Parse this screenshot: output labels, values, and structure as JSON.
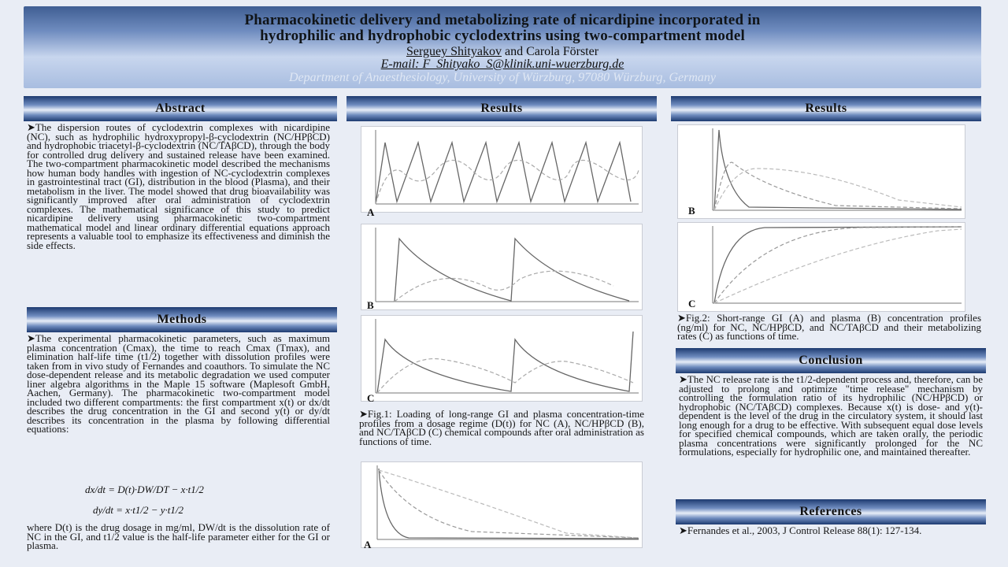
{
  "header": {
    "title_line1": "Pharmacokinetic delivery and metabolizing rate of nicardipine incorporated in",
    "title_line2": "hydrophilic and hydrophobic cyclodextrins using two-compartment model",
    "author1": "Serguey Shityakov",
    "author_rest": " and Carola Förster",
    "email": "E-mail: F_Shityako_S@klinik.uni-wuerzburg.de",
    "department": "Department of Anaesthesiology, University of Würzburg, 97080 Würzburg, Germany"
  },
  "sections": {
    "abstract": "Abstract",
    "methods": "Methods",
    "results_mid": "Results",
    "results_right": "Results",
    "conclusion": "Conclusion",
    "references": "References"
  },
  "abstract_text": "➤The dispersion routes of cyclodextrin complexes with nicardipine (NC), such as hydrophilic hydroxypropyl-β-cyclodextrin (NC/HPβCD) and hydrophobic triacetyl-β-cyclodextrin (NC/TAβCD), through the body for controlled drug delivery and sustained release have been examined. The two-compartment pharmacokinetic model described the mechanisms how human body handles with ingestion of NC-cyclodextrin complexes in gastrointestinal tract (GI), distribution in the blood (Plasma), and their metabolism in the liver. The model showed that drug bioavailability was significantly improved after oral administration of cyclodextrin complexes. The mathematical significance of this study to predict nicardipine delivery using pharmacokinetic two-compartment mathematical model and linear ordinary differential equations approach represents a valuable tool to emphasize its effectiveness and diminish the side effects.",
  "methods_text": "➤The experimental pharmacokinetic parameters, such as maximum plasma concentration (Cmax), the time to reach Cmax (Tmax), and elimination half-life time (t1/2) together with dissolution profiles were taken from in vivo study of Fernandes and coauthors. To simulate the NC dose-dependent release and its metabolic degradation we used computer liner algebra algorithms in the Maple 15 software (Maplesoft GmbH, Aachen, Germany). The pharmacokinetic two-compartment model included two different compartments: the first compartment x(t) or dx/dt describes the drug concentration in the GI and second y(t) or dy/dt describes its concentration in the plasma by following differential equations:",
  "equations": {
    "eq1": "dx/dt = D(t)·DW/DT − x·t1/2",
    "eq2": "dy/dt = x·t1/2 − y·t1/2"
  },
  "methods_text2": "where D(t) is the drug dosage in mg/ml, DW/dt is the dissolution rate of NC in the GI, and t1/2 value is the half-life parameter either for the GI or plasma.",
  "fig1_caption": "➤Fig.1: Loading of long-range GI and plasma concentration-time profiles from a dosage regime (D(t)) for NC (A), NC/HPβCD (B), and NC/TAβCD (C) chemical compounds after oral administration as functions of time.",
  "fig2_caption": "➤Fig.2: Short-range GI (A) and plasma (B) concentration profiles (ng/ml) for NC, NC/HPβCD, and NC/TAβCD and their metabolizing rates (C) as functions of time.",
  "conclusion_text": "➤The NC release rate is the t1/2-dependent process and, therefore, can be adjusted to prolong and optimize \"time release\" mechanism by controlling the formulation ratio of its hydrophilic (NC/HPβCD) or hydrophobic (NC/TAβCD) complexes. Because x(t) is dose- and y(t)-dependent is the level of the drug in the circulatory system, it should last long enough for a drug to be effective. With subsequent equal dose levels for specified chemical compounds, which are taken orally, the periodic plasma concentrations were significantly prolonged for the NC formulations, especially for hydrophilic one, and maintained thereafter.",
  "references_text": "➤Fernandes et al., 2003, J Control Release 88(1): 127-134.",
  "panel_labels": {
    "mid_a": "A",
    "mid_b": "B",
    "mid_c": "C",
    "mid_a2": "A",
    "right_b": "B",
    "right_c": "C"
  },
  "colors": {
    "header_dark": "#3f5e93",
    "section_dark": "#1d3a70"
  }
}
